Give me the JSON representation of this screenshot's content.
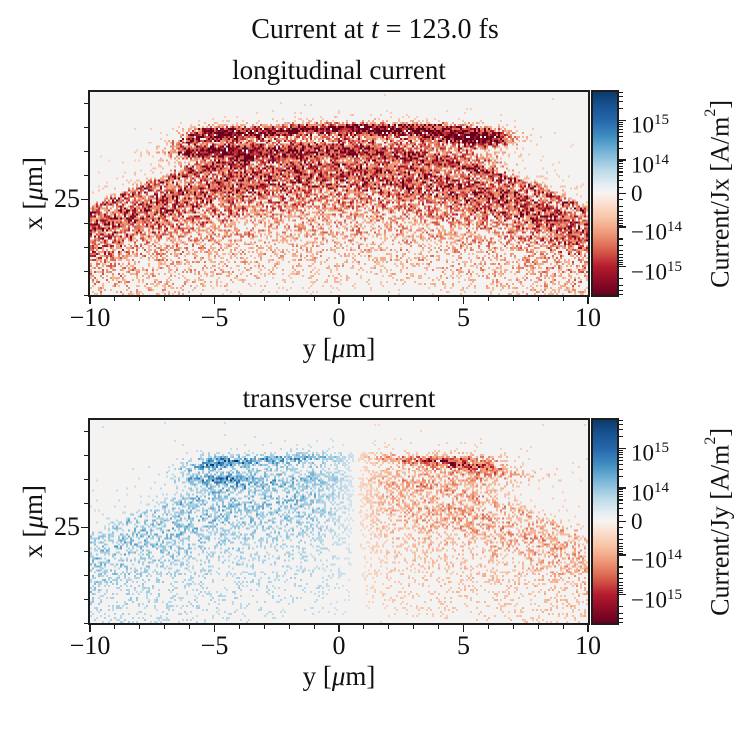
{
  "figure": {
    "title": {
      "pre": "Current at ",
      "var": "t",
      "post": " = 123.0 fs"
    }
  },
  "chart_data": {
    "type": "heatmap",
    "description": "Two pcolormesh panels of particle-in-cell simulated current density at t = 123.0 fs: longitudinal current Jx (all negative, red arcs) and transverse current Jy (positive/blue on left, negative/red on right), plotted over transverse position y [-10,10] um and longitudinal position x [~21,29.5] um, with diverging RdBu colorbars on a symmetric-log scale spanning -10^15 to 10^15 A/m^2.",
    "x_axis": {
      "label": {
        "pre": "y [",
        "mu": "μ",
        "post": "m]"
      },
      "range": [
        -10,
        10
      ],
      "major_ticks": [
        {
          "v": -10,
          "label": "−10"
        },
        {
          "v": -5,
          "label": "−5"
        },
        {
          "v": 0,
          "label": "0"
        },
        {
          "v": 5,
          "label": "5"
        },
        {
          "v": 10,
          "label": "10"
        }
      ],
      "minor_step": 1
    },
    "y_axis": {
      "label": {
        "pre": "x [",
        "mu": "μ",
        "post": "m]"
      },
      "range": [
        21,
        29.5
      ],
      "major_ticks": [
        {
          "v": 25,
          "label": "25"
        }
      ],
      "minor_step": 1
    },
    "colorbar": {
      "gradient_stops": [
        {
          "f": 0.0,
          "c": "#0b3a69"
        },
        {
          "f": 0.06,
          "c": "#15508f"
        },
        {
          "f": 0.14,
          "c": "#2667ab"
        },
        {
          "f": 0.22,
          "c": "#3f8ec0"
        },
        {
          "f": 0.3,
          "c": "#7ab6d8"
        },
        {
          "f": 0.38,
          "c": "#b7d8e9"
        },
        {
          "f": 0.46,
          "c": "#e7eff4"
        },
        {
          "f": 0.5,
          "c": "#f7f4f1"
        },
        {
          "f": 0.54,
          "c": "#fbe4d6"
        },
        {
          "f": 0.62,
          "c": "#f9c4a6"
        },
        {
          "f": 0.7,
          "c": "#ee9677"
        },
        {
          "f": 0.78,
          "c": "#d75f4c"
        },
        {
          "f": 0.86,
          "c": "#b41b2d"
        },
        {
          "f": 0.93,
          "c": "#8e0c26"
        },
        {
          "f": 1.0,
          "c": "#67001f"
        }
      ],
      "scale": {
        "zero_frac": 0.5,
        "e14_frac_offset": 0.165,
        "decade_frac": 0.195
      },
      "tick_labels": [
        {
          "t": "10",
          "e": "15",
          "v": 1000000000000000.0
        },
        {
          "t": "10",
          "e": "14",
          "v": 100000000000000.0
        },
        {
          "t": "0",
          "v": 0
        },
        {
          "t": "−10",
          "e": "14",
          "v": -100000000000000.0
        },
        {
          "t": "−10",
          "e": "15",
          "v": -1000000000000000.0
        }
      ],
      "minor_values": [
        20000000000000.0,
        30000000000000.0,
        40000000000000.0,
        50000000000000.0,
        60000000000000.0,
        70000000000000.0,
        80000000000000.0,
        90000000000000.0,
        200000000000000.0,
        300000000000000.0,
        400000000000000.0,
        500000000000000.0,
        600000000000000.0,
        700000000000000.0,
        800000000000000.0,
        900000000000000.0,
        2000000000000000.0,
        3000000000000000.0,
        4000000000000000.0,
        5000000000000000.0
      ]
    },
    "palette": {
      "background": "#f4f3f1",
      "red_stops": [
        [
          0.0,
          "#f9e0cf"
        ],
        [
          0.3,
          "#f4a582"
        ],
        [
          0.55,
          "#d6604d"
        ],
        [
          0.8,
          "#b2182b"
        ],
        [
          1.0,
          "#67001f"
        ]
      ],
      "blue_stops": [
        [
          0.0,
          "#d9e8f1"
        ],
        [
          0.3,
          "#92c5de"
        ],
        [
          0.55,
          "#4393c3"
        ],
        [
          0.8,
          "#2166ac"
        ],
        [
          1.0,
          "#053061"
        ]
      ]
    },
    "bands": [
      {
        "apex": 27.95,
        "R": 40,
        "w": 0.13,
        "amp": 0.95,
        "yext": 6.4
      },
      {
        "apex": 27.5,
        "R": 30,
        "w": 0.5,
        "amp": 0.5,
        "yext": 6.5
      },
      {
        "apex": 27.0,
        "R": 21,
        "w": 0.18,
        "amp": 0.55,
        "yext": 11
      },
      {
        "apex": 26.35,
        "R": 21,
        "w": 0.3,
        "amp": 0.5,
        "yext": 11
      },
      {
        "apex": 25.7,
        "R": 21,
        "w": 0.34,
        "amp": 0.45,
        "yext": 11
      },
      {
        "apex": 26.0,
        "R": 21,
        "w": 1.1,
        "amp": 0.2,
        "yext": 11
      },
      {
        "apex": 24.9,
        "R": 21,
        "w": 0.38,
        "amp": 0.38,
        "yext": 11
      },
      {
        "apex": 23.9,
        "R": 21,
        "w": 0.44,
        "amp": 0.3,
        "yext": 11
      },
      {
        "apex": 22.9,
        "R": 21,
        "w": 0.48,
        "amp": 0.22,
        "yext": 11
      },
      {
        "apex": 22.0,
        "R": 21,
        "w": 0.52,
        "amp": 0.15,
        "yext": 11
      }
    ],
    "panels": [
      {
        "title": "longitudinal current",
        "cb_label": {
          "pre": "Current/Jx [A/m",
          "sup": "2",
          "post": "]"
        },
        "field": {
          "seed": 42,
          "density": 1.15,
          "contrast": 1.1,
          "base": 0.003,
          "band_scale": 1.0,
          "polarity": "negative",
          "blobs": [
            {
              "y": -4.7,
              "x": 27.0,
              "ry": 1.2,
              "rx": 0.14,
              "amp": 1.5
            },
            {
              "y": -4.9,
              "x": 27.85,
              "ry": 0.8,
              "rx": 0.16,
              "amp": 1.0
            },
            {
              "y": 5.6,
              "x": 27.65,
              "ry": 0.95,
              "rx": 0.22,
              "amp": 1.3
            },
            {
              "y": 0.5,
              "x": 28.0,
              "ry": 2.5,
              "rx": 0.12,
              "amp": 0.45
            },
            {
              "y": 3.8,
              "x": 28.05,
              "ry": 1.2,
              "rx": 0.12,
              "amp": 0.6
            }
          ]
        }
      },
      {
        "title": "transverse current",
        "cb_label": {
          "pre": "Current/Jy [A/m",
          "sup": "2",
          "post": "]"
        },
        "field": {
          "seed": 1337,
          "density": 0.8,
          "contrast": 0.55,
          "base": 0.004,
          "band_scale": 0.8,
          "polarity": "split",
          "split": {
            "y0": 0.7,
            "w": 1.4
          },
          "blobs": [
            {
              "y": -4.7,
              "x": 27.0,
              "ry": 1.0,
              "rx": 0.14,
              "amp": 0.9
            },
            {
              "y": -4.9,
              "x": 27.85,
              "ry": 0.7,
              "rx": 0.16,
              "amp": 0.7
            },
            {
              "y": 4.9,
              "x": 27.8,
              "ry": 1.2,
              "rx": 0.2,
              "amp": 0.9
            },
            {
              "y": 6.3,
              "x": 27.2,
              "ry": 1.4,
              "rx": 0.25,
              "amp": 0.5
            }
          ]
        }
      }
    ]
  }
}
